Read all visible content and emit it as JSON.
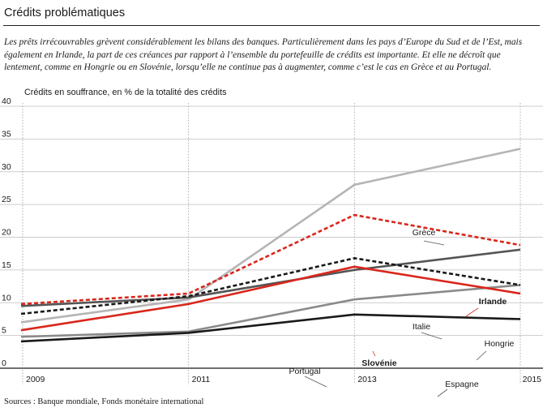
{
  "header": {
    "title": "Crédits problématiques",
    "intro": "Les prêts irrécouvrables grèvent considérablement les bilans des banques. Particulièrement dans les pays d’Europe du Sud et de l’Est, mais également en Irlande, la part de ces créances par rapport à l’ensemble du portefeuille de crédits est importante. Et elle ne décroît que lentement, comme en Hongrie ou en Slovénie, lorsqu’elle ne continue pas à augmenter, comme c’est le cas en Grèce et au Portugal."
  },
  "footer": {
    "source": "Sources : Banque mondiale, Fonds monétaire international"
  },
  "chart_data": {
    "type": "line",
    "ylabel": "Crédits en souffrance, en % de la totalité des crédits",
    "x": [
      2009,
      2011,
      2013,
      2015
    ],
    "x_tick_labels": [
      "2009",
      "2011",
      "2013",
      "2015"
    ],
    "ylim": [
      0,
      40
    ],
    "xlim": [
      2009,
      2015
    ],
    "y_ticks": [
      0,
      5,
      10,
      15,
      20,
      25,
      30,
      35,
      40
    ],
    "grid": "horizontal solid, vertical dotted",
    "series": [
      {
        "name": "Grèce",
        "values": [
          7.0,
          10.5,
          28.0,
          33.5
        ],
        "color": "#b5b5b5",
        "style": "solid"
      },
      {
        "name": "Irlande",
        "values": [
          9.8,
          11.4,
          23.4,
          18.8
        ],
        "color": "#d9261c",
        "style": "dashed"
      },
      {
        "name": "Italie",
        "values": [
          9.5,
          10.8,
          15.0,
          18.1
        ],
        "color": "#555555",
        "style": "solid"
      },
      {
        "name": "Hongrie",
        "values": [
          8.3,
          11.0,
          16.8,
          12.7
        ],
        "color": "#1a1a1a",
        "style": "dashed"
      },
      {
        "name": "Slovénie",
        "values": [
          5.8,
          9.8,
          15.5,
          11.4
        ],
        "color": "#d9261c",
        "style": "solid"
      },
      {
        "name": "Portugal",
        "values": [
          4.8,
          5.6,
          10.5,
          12.7
        ],
        "color": "#8a8a8a",
        "style": "solid"
      },
      {
        "name": "Espagne",
        "values": [
          4.1,
          5.4,
          8.2,
          7.5
        ],
        "color": "#1a1a1a",
        "style": "solid"
      }
    ]
  }
}
